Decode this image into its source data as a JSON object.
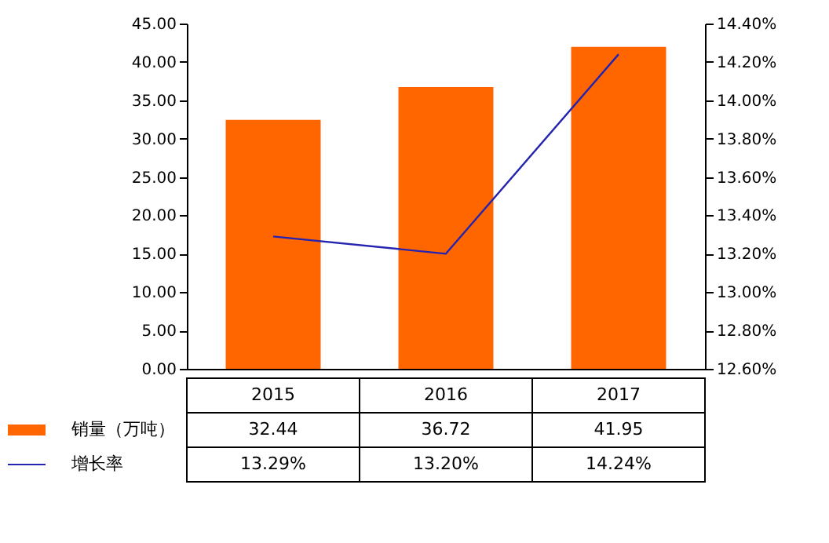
{
  "chart_data": {
    "type": "bar",
    "categories": [
      "2015",
      "2016",
      "2017"
    ],
    "series": [
      {
        "name": "销量（万吨）",
        "color": "#ff6600",
        "values": [
          32.44,
          36.72,
          41.95
        ],
        "value_labels": [
          "32.44",
          "36.72",
          "41.95"
        ]
      },
      {
        "name": "增长率",
        "type": "line",
        "axis": "y2",
        "color": "#2424b0",
        "values": [
          13.29,
          13.2,
          14.24
        ],
        "value_labels": [
          "13.29%",
          "13.20%",
          "14.24%"
        ]
      }
    ],
    "ylim": [
      0,
      45
    ],
    "yticks": [
      {
        "value": 0,
        "label": "0.00"
      },
      {
        "value": 5,
        "label": "5.00"
      },
      {
        "value": 10,
        "label": "10.00"
      },
      {
        "value": 15,
        "label": "15.00"
      },
      {
        "value": 20,
        "label": "20.00"
      },
      {
        "value": 25,
        "label": "25.00"
      },
      {
        "value": 30,
        "label": "30.00"
      },
      {
        "value": 35,
        "label": "35.00"
      },
      {
        "value": 40,
        "label": "40.00"
      },
      {
        "value": 45,
        "label": "45.00"
      }
    ],
    "y2lim": [
      12.6,
      14.4
    ],
    "y2ticks": [
      {
        "value": 12.6,
        "label": "12.60%"
      },
      {
        "value": 12.8,
        "label": "12.80%"
      },
      {
        "value": 13.0,
        "label": "13.00%"
      },
      {
        "value": 13.2,
        "label": "13.20%"
      },
      {
        "value": 13.4,
        "label": "13.40%"
      },
      {
        "value": 13.6,
        "label": "13.60%"
      },
      {
        "value": 13.8,
        "label": "13.80%"
      },
      {
        "value": 14.0,
        "label": "14.00%"
      },
      {
        "value": 14.2,
        "label": "14.20%"
      },
      {
        "value": 14.4,
        "label": "14.40%"
      }
    ],
    "grid": false,
    "legend": "bottom"
  }
}
